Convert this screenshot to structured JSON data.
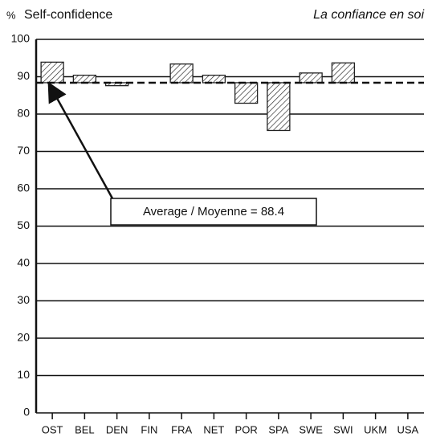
{
  "chart_data": {
    "type": "deviation-bar",
    "unit": "%",
    "title": "Self-confidence",
    "subtitle": "La confiance en soi",
    "categories": [
      "OST",
      "BEL",
      "DEN",
      "FIN",
      "FRA",
      "NET",
      "POR",
      "SPA",
      "SWE",
      "SWI",
      "UKM",
      "USA"
    ],
    "values": [
      93.9,
      90.4,
      87.6,
      null,
      93.4,
      90.4,
      82.9,
      75.6,
      91.0,
      93.7,
      null,
      null
    ],
    "average": 88.4,
    "annotation": "Average / Moyenne = 88.4",
    "color": "#222222",
    "ylim": [
      0,
      100
    ],
    "yticks": [
      0,
      10,
      20,
      30,
      40,
      50,
      60,
      70,
      80,
      90,
      100
    ],
    "grid": true
  }
}
